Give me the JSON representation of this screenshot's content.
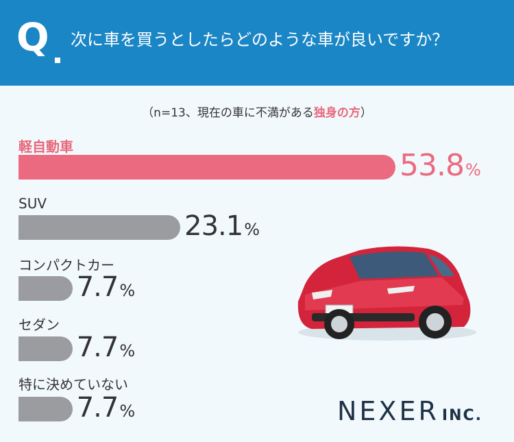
{
  "header": {
    "q_mark": "Q",
    "question": "次に車を買うとしたらどのような車が良いですか？"
  },
  "sample": {
    "prefix": "（n=13、現在の車に不満がある",
    "highlight": "独身の方",
    "suffix": "）"
  },
  "chart_data": {
    "type": "bar",
    "orientation": "horizontal",
    "title": "次に車を買うとしたらどのような車が良いですか？",
    "categories": [
      "軽自動車",
      "SUV",
      "コンパクトカー",
      "セダン",
      "特に決めていない"
    ],
    "values": [
      53.8,
      23.1,
      7.7,
      7.7,
      7.7
    ],
    "value_labels": [
      "53.8",
      "23.1",
      "7.7",
      "7.7",
      "7.7"
    ],
    "unit": "%",
    "xlim": [
      0,
      100
    ],
    "grid": false,
    "legend": "none",
    "colors": {
      "highlight": "#ec6a80",
      "default": "#9a9ca0"
    }
  },
  "brand": {
    "name": "NEXER",
    "suffix": "INC."
  }
}
